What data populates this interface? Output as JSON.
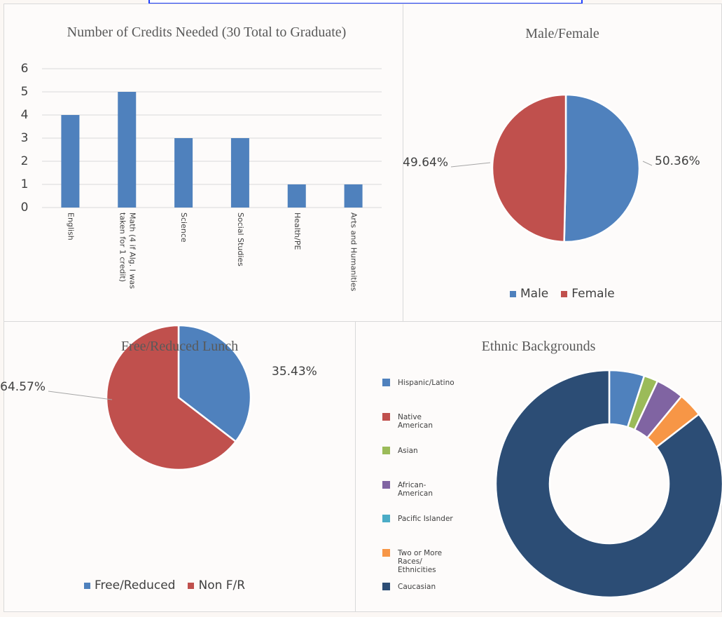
{
  "chart_data": [
    {
      "type": "bar",
      "title": "Number of Credits Needed (30 Total to Graduate)",
      "categories": [
        "English",
        "Math (4 if Alg. I was taken for 1 credit)",
        "Science",
        "Social Studies",
        "Health/PE",
        "Arts and Humanities"
      ],
      "values": [
        4,
        5,
        3,
        3,
        1,
        1
      ],
      "color": "#4f81bd",
      "ylim": [
        0,
        6
      ],
      "yticks": [
        0,
        1,
        2,
        3,
        4,
        5,
        6
      ],
      "grid": true
    },
    {
      "type": "pie",
      "title": "Male/Female",
      "categories": [
        "Male",
        "Female"
      ],
      "values": [
        50.36,
        49.64
      ],
      "value_labels": [
        "50.36%",
        "49.64%"
      ],
      "colors": [
        "#4f81bd",
        "#c0504d"
      ]
    },
    {
      "type": "pie",
      "title": "Free/Reduced Lunch",
      "categories": [
        "Free/Reduced",
        "Non F/R"
      ],
      "values": [
        35.43,
        64.57
      ],
      "value_labels": [
        "35.43%",
        "64.57%"
      ],
      "colors": [
        "#4f81bd",
        "#c0504d"
      ]
    },
    {
      "type": "donut",
      "title": "Ethnic Backgrounds",
      "categories": [
        "Hispanic/Latino",
        "Native American",
        "Asian",
        "African-American",
        "Pacific Islander",
        "Two or More Races/ Ethnicities",
        "Caucasian"
      ],
      "values": [
        5,
        0,
        2,
        4,
        0,
        3.5,
        85.5
      ],
      "colors": [
        "#4f81bd",
        "#c0504d",
        "#9bbb59",
        "#8064a2",
        "#4bacc6",
        "#f79646",
        "#2c4d75"
      ]
    }
  ]
}
